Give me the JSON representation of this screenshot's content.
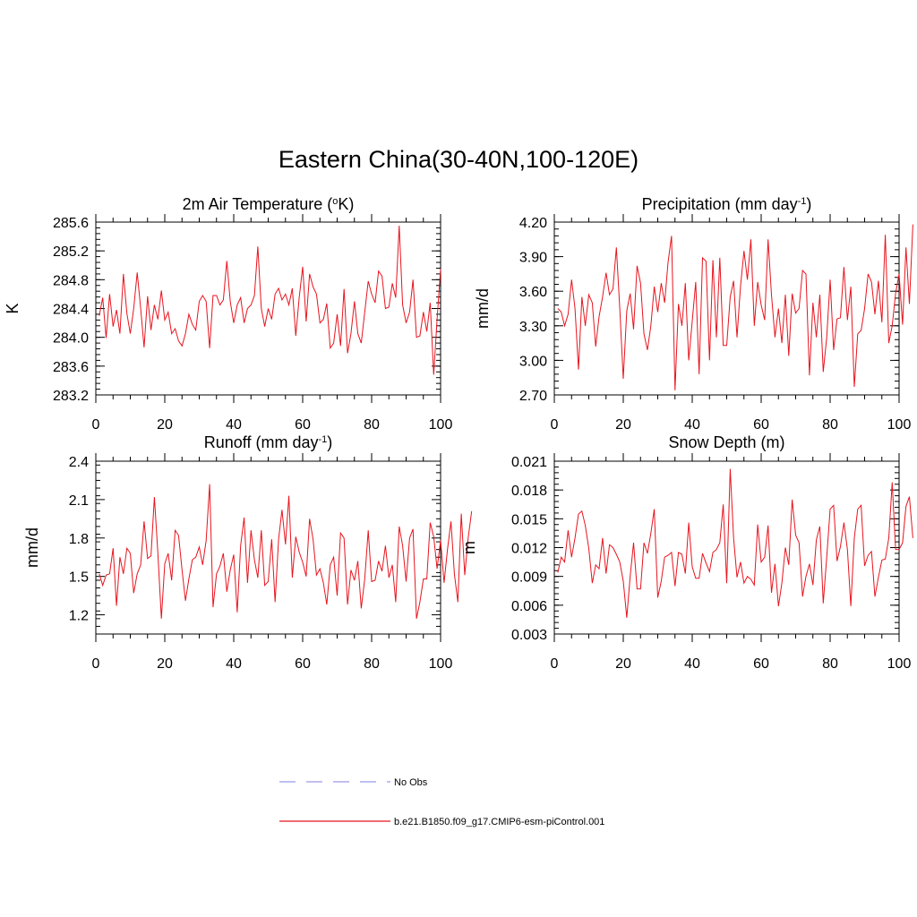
{
  "page_title": "Eastern China(30-40N,100-120E)",
  "colors": {
    "model": "#e8141e",
    "obs": "#9999ee"
  },
  "legend": [
    {
      "label": "No Obs",
      "style": "dashed",
      "color": "#9999ee"
    },
    {
      "label": "b.e21.B1850.f09_g17.CMIP6-esm-piControl.001",
      "style": "solid",
      "color": "#e8141e"
    }
  ],
  "chart_data": [
    {
      "type": "line",
      "title_parts": [
        "2m Air Temperature (",
        "o",
        "K)"
      ],
      "ylabel": "K",
      "xlim": [
        0,
        100
      ],
      "ylim": [
        283.2,
        285.6
      ],
      "xticks": [
        "0",
        "20",
        "40",
        "60",
        "80",
        "100"
      ],
      "yticks": [
        "283.2",
        "283.6",
        "284.0",
        "284.4",
        "284.8",
        "285.2",
        "285.6"
      ],
      "x_start": 1,
      "x_step": 1,
      "series": [
        {
          "values": [
            284.3,
            284.55,
            283.99,
            284.6,
            284.15,
            284.38,
            284.05,
            284.88,
            284.33,
            284.05,
            284.4,
            284.9,
            284.4,
            283.86,
            284.57,
            284.1,
            284.45,
            284.25,
            284.65,
            284.24,
            284.35,
            284.05,
            284.12,
            283.95,
            283.88,
            284.05,
            284.32,
            284.18,
            284.1,
            284.5,
            284.58,
            284.5,
            283.85,
            284.58,
            284.58,
            284.45,
            284.52,
            285.06,
            284.5,
            284.2,
            284.45,
            284.55,
            284.2,
            284.4,
            284.45,
            284.58,
            285.26,
            284.4,
            284.15,
            284.4,
            284.25,
            284.6,
            284.68,
            284.52,
            284.6,
            284.45,
            284.68,
            284.02,
            284.55,
            284.98,
            284.22,
            284.88,
            284.7,
            284.6,
            284.2,
            284.25,
            284.47,
            283.85,
            283.92,
            284.32,
            283.88,
            284.67,
            283.78,
            284.05,
            284.5,
            284.05,
            283.92,
            284.35,
            284.78,
            284.6,
            284.48,
            284.92,
            284.85,
            284.4,
            284.42,
            284.75,
            284.55,
            285.55,
            284.45,
            284.2,
            284.35,
            284.8,
            284.0,
            284.02,
            284.35,
            284.08,
            284.48,
            283.48,
            284.25,
            284.95
          ]
        }
      ]
    },
    {
      "type": "line",
      "title_parts": [
        "Precipitation (mm day",
        "-1",
        ")"
      ],
      "ylabel": "mm/d",
      "xlim": [
        0,
        100
      ],
      "ylim": [
        2.7,
        4.2
      ],
      "xticks": [
        "0",
        "20",
        "40",
        "60",
        "80",
        "100"
      ],
      "yticks": [
        "2.70",
        "3.00",
        "3.30",
        "3.60",
        "3.90",
        "4.20"
      ],
      "x_start": 1,
      "x_step": 1,
      "series": [
        {
          "values": [
            3.45,
            3.42,
            3.3,
            3.4,
            3.7,
            3.45,
            2.92,
            3.55,
            3.3,
            3.57,
            3.5,
            3.12,
            3.38,
            3.55,
            3.76,
            3.57,
            3.62,
            3.98,
            3.45,
            2.84,
            3.43,
            3.58,
            3.27,
            3.82,
            3.67,
            3.23,
            3.09,
            3.3,
            3.64,
            3.42,
            3.67,
            3.5,
            3.85,
            4.08,
            2.74,
            3.49,
            3.3,
            3.67,
            3.0,
            3.34,
            3.68,
            2.88,
            3.89,
            3.86,
            3.0,
            3.87,
            3.2,
            3.89,
            3.13,
            3.13,
            3.55,
            3.69,
            3.2,
            3.64,
            3.95,
            3.7,
            4.05,
            3.3,
            3.68,
            3.48,
            3.35,
            4.05,
            3.57,
            3.2,
            3.45,
            3.15,
            3.57,
            3.04,
            3.58,
            3.41,
            3.45,
            3.78,
            3.75,
            2.87,
            3.5,
            3.2,
            3.57,
            2.9,
            3.2,
            3.7,
            3.09,
            3.36,
            3.37,
            3.81,
            3.35,
            3.64,
            2.77,
            3.23,
            3.26,
            3.45,
            3.75,
            3.68,
            3.4,
            3.69,
            3.33,
            4.09,
            3.15,
            3.3,
            3.58,
            3.75,
            3.31,
            3.98,
            3.49,
            4.18
          ]
        }
      ]
    },
    {
      "type": "line",
      "title_parts": [
        "Runoff (mm day",
        "-1",
        ")"
      ],
      "ylabel": "mm/d",
      "xlim": [
        0,
        100
      ],
      "ylim": [
        1.05,
        2.4
      ],
      "xticks": [
        "0",
        "20",
        "40",
        "60",
        "80",
        "100"
      ],
      "yticks": [
        "1.2",
        "1.5",
        "1.8",
        "2.1",
        "2.4"
      ],
      "x_start": 1,
      "x_step": 1,
      "series": [
        {
          "values": [
            1.52,
            1.43,
            1.51,
            1.52,
            1.72,
            1.27,
            1.65,
            1.52,
            1.72,
            1.68,
            1.37,
            1.52,
            1.59,
            1.93,
            1.64,
            1.66,
            2.12,
            1.68,
            1.17,
            1.6,
            1.68,
            1.47,
            1.86,
            1.82,
            1.55,
            1.31,
            1.48,
            1.63,
            1.65,
            1.73,
            1.59,
            1.78,
            2.22,
            1.26,
            1.52,
            1.58,
            1.68,
            1.38,
            1.55,
            1.67,
            1.22,
            1.74,
            1.96,
            1.45,
            1.86,
            1.63,
            1.49,
            1.86,
            1.43,
            1.46,
            1.79,
            1.3,
            1.79,
            2.02,
            1.75,
            2.13,
            1.49,
            1.81,
            1.69,
            1.61,
            1.5,
            1.95,
            1.79,
            1.51,
            1.56,
            1.45,
            1.28,
            1.59,
            1.65,
            1.35,
            1.84,
            1.8,
            1.28,
            1.55,
            1.47,
            1.62,
            1.25,
            1.48,
            1.86,
            1.46,
            1.47,
            1.62,
            1.54,
            1.74,
            1.49,
            1.59,
            1.3,
            1.89,
            1.74,
            1.46,
            1.8,
            1.87,
            1.17,
            1.3,
            1.48,
            1.48,
            1.92,
            1.81,
            1.56,
            1.78,
            1.45,
            1.71,
            1.93,
            1.52,
            1.3,
            1.99,
            1.51,
            1.8,
            2.01
          ]
        }
      ]
    },
    {
      "type": "line",
      "title_parts": [
        "Snow Depth (m)"
      ],
      "ylabel": "m",
      "xlim": [
        0,
        100
      ],
      "ylim": [
        0.003,
        0.021
      ],
      "xticks": [
        "0",
        "20",
        "40",
        "60",
        "80",
        "100"
      ],
      "yticks": [
        "0.003",
        "0.006",
        "0.009",
        "0.012",
        "0.015",
        "0.018",
        "0.021"
      ],
      "x_start": 1,
      "x_step": 1,
      "series": [
        {
          "values": [
            0.0094,
            0.011,
            0.0105,
            0.0138,
            0.011,
            0.013,
            0.0155,
            0.0158,
            0.0143,
            0.0119,
            0.0083,
            0.0102,
            0.0098,
            0.013,
            0.0093,
            0.0123,
            0.012,
            0.0113,
            0.0105,
            0.0085,
            0.0047,
            0.009,
            0.0125,
            0.0077,
            0.0077,
            0.0125,
            0.0114,
            0.0135,
            0.016,
            0.0068,
            0.0085,
            0.011,
            0.0112,
            0.0115,
            0.008,
            0.0115,
            0.0113,
            0.0093,
            0.0146,
            0.01,
            0.0088,
            0.0088,
            0.0114,
            0.0104,
            0.0095,
            0.0115,
            0.0118,
            0.0125,
            0.0165,
            0.0083,
            0.0202,
            0.013,
            0.0089,
            0.0105,
            0.0083,
            0.009,
            0.0087,
            0.0081,
            0.0144,
            0.0105,
            0.011,
            0.0143,
            0.0073,
            0.0103,
            0.0059,
            0.0083,
            0.012,
            0.0102,
            0.017,
            0.0133,
            0.0125,
            0.0069,
            0.009,
            0.0103,
            0.0081,
            0.0128,
            0.0142,
            0.0062,
            0.011,
            0.016,
            0.0164,
            0.0106,
            0.0121,
            0.0146,
            0.0118,
            0.0059,
            0.013,
            0.016,
            0.0164,
            0.0101,
            0.0112,
            0.0116,
            0.0069,
            0.0089,
            0.0107,
            0.0108,
            0.013,
            0.0188,
            0.0118,
            0.0118,
            0.0125,
            0.0163,
            0.0173,
            0.013
          ]
        }
      ]
    }
  ]
}
